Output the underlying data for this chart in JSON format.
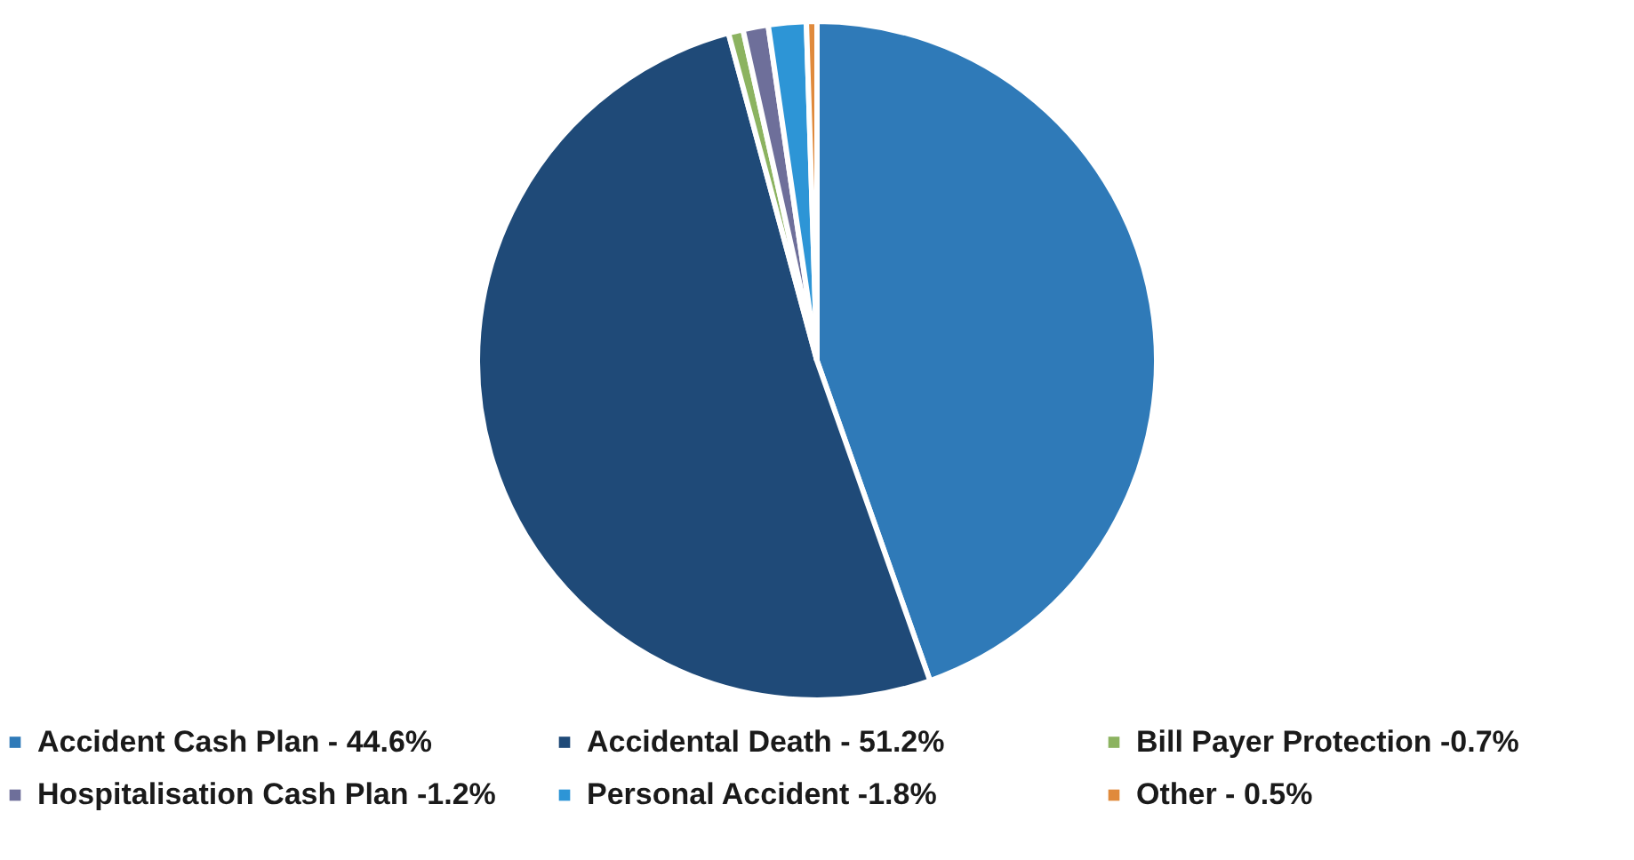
{
  "chart_data": {
    "type": "pie",
    "categories": [
      "Accident Cash Plan - 44.6%",
      "Accidental Death - 51.2%",
      "Bill Payer Protection -0.7%",
      "Hospitalisation Cash Plan -1.2%",
      "Personal Accident -1.8%",
      "Other - 0.5%"
    ],
    "values": [
      44.6,
      51.2,
      0.7,
      1.2,
      1.8,
      0.5
    ],
    "colors": [
      "#2f7ab8",
      "#1f4a78",
      "#8cb360",
      "#6e6f9a",
      "#2d95d6",
      "#e08a3c"
    ],
    "legend": "bottom"
  }
}
